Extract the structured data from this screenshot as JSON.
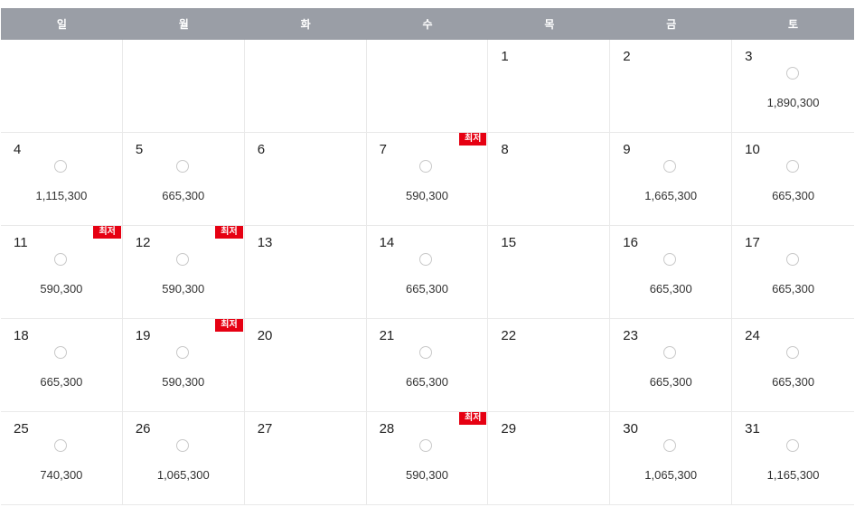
{
  "weekdays": [
    "일",
    "월",
    "화",
    "수",
    "목",
    "금",
    "토"
  ],
  "lowest_label": "최저",
  "cells": [
    {
      "day": "",
      "price": null,
      "lowest": false
    },
    {
      "day": "",
      "price": null,
      "lowest": false
    },
    {
      "day": "",
      "price": null,
      "lowest": false
    },
    {
      "day": "",
      "price": null,
      "lowest": false
    },
    {
      "day": "1",
      "price": null,
      "lowest": false
    },
    {
      "day": "2",
      "price": null,
      "lowest": false
    },
    {
      "day": "3",
      "price": "1,890,300",
      "lowest": false
    },
    {
      "day": "4",
      "price": "1,115,300",
      "lowest": false
    },
    {
      "day": "5",
      "price": "665,300",
      "lowest": false
    },
    {
      "day": "6",
      "price": null,
      "lowest": false
    },
    {
      "day": "7",
      "price": "590,300",
      "lowest": true
    },
    {
      "day": "8",
      "price": null,
      "lowest": false
    },
    {
      "day": "9",
      "price": "1,665,300",
      "lowest": false
    },
    {
      "day": "10",
      "price": "665,300",
      "lowest": false
    },
    {
      "day": "11",
      "price": "590,300",
      "lowest": true
    },
    {
      "day": "12",
      "price": "590,300",
      "lowest": true
    },
    {
      "day": "13",
      "price": null,
      "lowest": false
    },
    {
      "day": "14",
      "price": "665,300",
      "lowest": false
    },
    {
      "day": "15",
      "price": null,
      "lowest": false
    },
    {
      "day": "16",
      "price": "665,300",
      "lowest": false
    },
    {
      "day": "17",
      "price": "665,300",
      "lowest": false
    },
    {
      "day": "18",
      "price": "665,300",
      "lowest": false
    },
    {
      "day": "19",
      "price": "590,300",
      "lowest": true
    },
    {
      "day": "20",
      "price": null,
      "lowest": false
    },
    {
      "day": "21",
      "price": "665,300",
      "lowest": false
    },
    {
      "day": "22",
      "price": null,
      "lowest": false
    },
    {
      "day": "23",
      "price": "665,300",
      "lowest": false
    },
    {
      "day": "24",
      "price": "665,300",
      "lowest": false
    },
    {
      "day": "25",
      "price": "740,300",
      "lowest": false
    },
    {
      "day": "26",
      "price": "1,065,300",
      "lowest": false
    },
    {
      "day": "27",
      "price": null,
      "lowest": false
    },
    {
      "day": "28",
      "price": "590,300",
      "lowest": true
    },
    {
      "day": "29",
      "price": null,
      "lowest": false
    },
    {
      "day": "30",
      "price": "1,065,300",
      "lowest": false
    },
    {
      "day": "31",
      "price": "1,165,300",
      "lowest": false
    }
  ]
}
